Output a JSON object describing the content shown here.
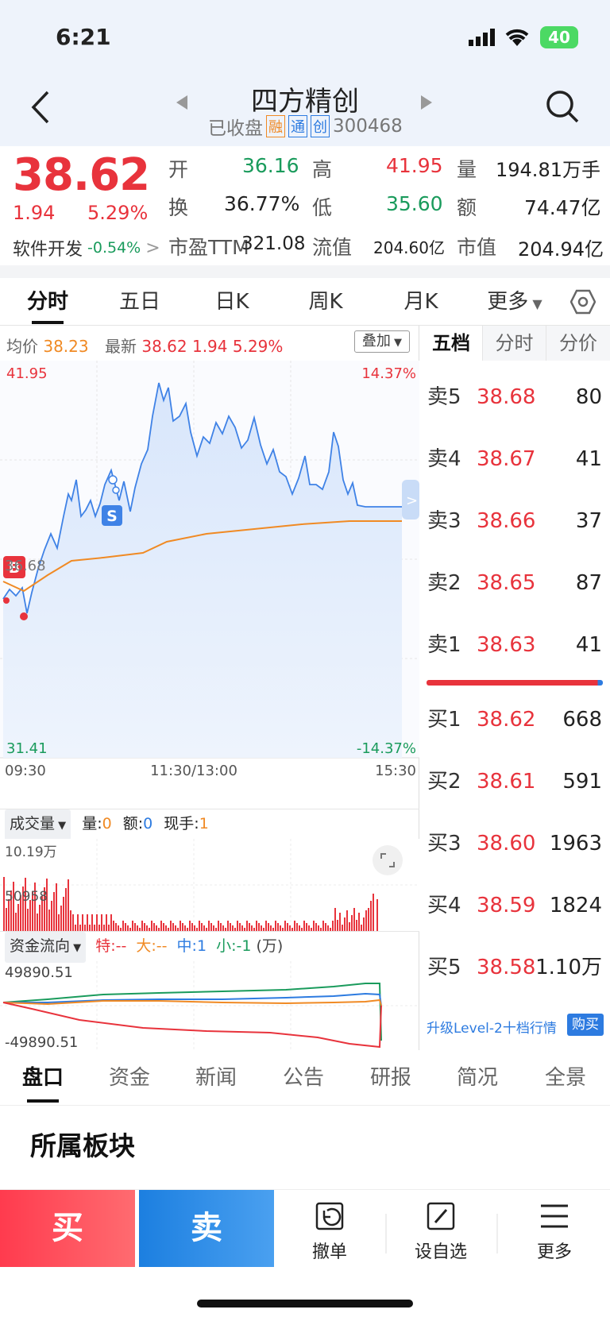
{
  "status": {
    "time": "6:21",
    "battery": "40"
  },
  "nav": {
    "title": "四方精创",
    "status": "已收盘",
    "badges": [
      "融",
      "通",
      "创"
    ],
    "code": "300468"
  },
  "quote": {
    "price": "38.62",
    "change": "1.94",
    "pct": "5.29%",
    "open_label": "开",
    "open": "36.16",
    "high_label": "高",
    "high": "41.95",
    "vol_label": "量",
    "vol": "194.81万手",
    "turn_label": "换",
    "turn": "36.77%",
    "low_label": "低",
    "low": "35.60",
    "amt_label": "额",
    "amt": "74.47亿",
    "sector": "软件开发",
    "sector_pct": "-0.54%",
    "pe_label": "市盈TTM",
    "pe": "321.08",
    "float_label": "流值",
    "float": "204.60亿",
    "cap_label": "市值",
    "cap": "204.94亿"
  },
  "tabs": [
    "分时",
    "五日",
    "日K",
    "周K",
    "月K",
    "更多"
  ],
  "chart_header": {
    "avg_label": "均价",
    "avg": "38.23",
    "latest_label": "最新",
    "latest": "38.62",
    "chg": "1.94",
    "pct": "5.29%",
    "overlay": "叠加"
  },
  "chart_axis": {
    "top_price": "41.95",
    "bottom_price": "31.41",
    "top_pct": "14.37%",
    "bottom_pct": "-14.37%",
    "mid_price": "36.68",
    "t0": "09:30",
    "t1": "11:30/13:00",
    "t2": "15:30",
    "marker_s": "S",
    "marker_b": "B"
  },
  "vol_header": {
    "label": "成交量",
    "q_label": "量:",
    "q": "0",
    "a_label": "额:",
    "a": "0",
    "h_label": "现手:",
    "h": "1",
    "top": "10.19万",
    "mid": "50958"
  },
  "flow_header": {
    "label": "资金流向",
    "te": "特:--",
    "da": "大:--",
    "zhong": "中:1",
    "xiao": "小:-1",
    "unit": "(万)",
    "top": "49890.51",
    "bottom": "-49890.51"
  },
  "orderbook": {
    "tabs": [
      "五档",
      "分时",
      "分价"
    ],
    "sell": [
      {
        "label": "卖5",
        "price": "38.68",
        "qty": "80"
      },
      {
        "label": "卖4",
        "price": "38.67",
        "qty": "41"
      },
      {
        "label": "卖3",
        "price": "38.66",
        "qty": "37"
      },
      {
        "label": "卖2",
        "price": "38.65",
        "qty": "87"
      },
      {
        "label": "卖1",
        "price": "38.63",
        "qty": "41"
      }
    ],
    "buy": [
      {
        "label": "买1",
        "price": "38.62",
        "qty": "668"
      },
      {
        "label": "买2",
        "price": "38.61",
        "qty": "591"
      },
      {
        "label": "买3",
        "price": "38.60",
        "qty": "1963"
      },
      {
        "label": "买4",
        "price": "38.59",
        "qty": "1824"
      },
      {
        "label": "买5",
        "price": "38.58",
        "qty": "1.10万"
      }
    ],
    "upgrade": "升级Level-2十档行情",
    "buy_btn": "购买"
  },
  "bottom_tabs": [
    "盘口",
    "资金",
    "新闻",
    "公告",
    "研报",
    "简况",
    "全景"
  ],
  "section_title": "所属板块",
  "trade": {
    "buy": "买",
    "sell": "卖",
    "cancel": "撤单",
    "watch": "设自选",
    "more": "更多"
  },
  "colors": {
    "red": "#e8333c",
    "green": "#1a9b5c",
    "blue": "#2d7be0",
    "orange": "#f08a24"
  }
}
